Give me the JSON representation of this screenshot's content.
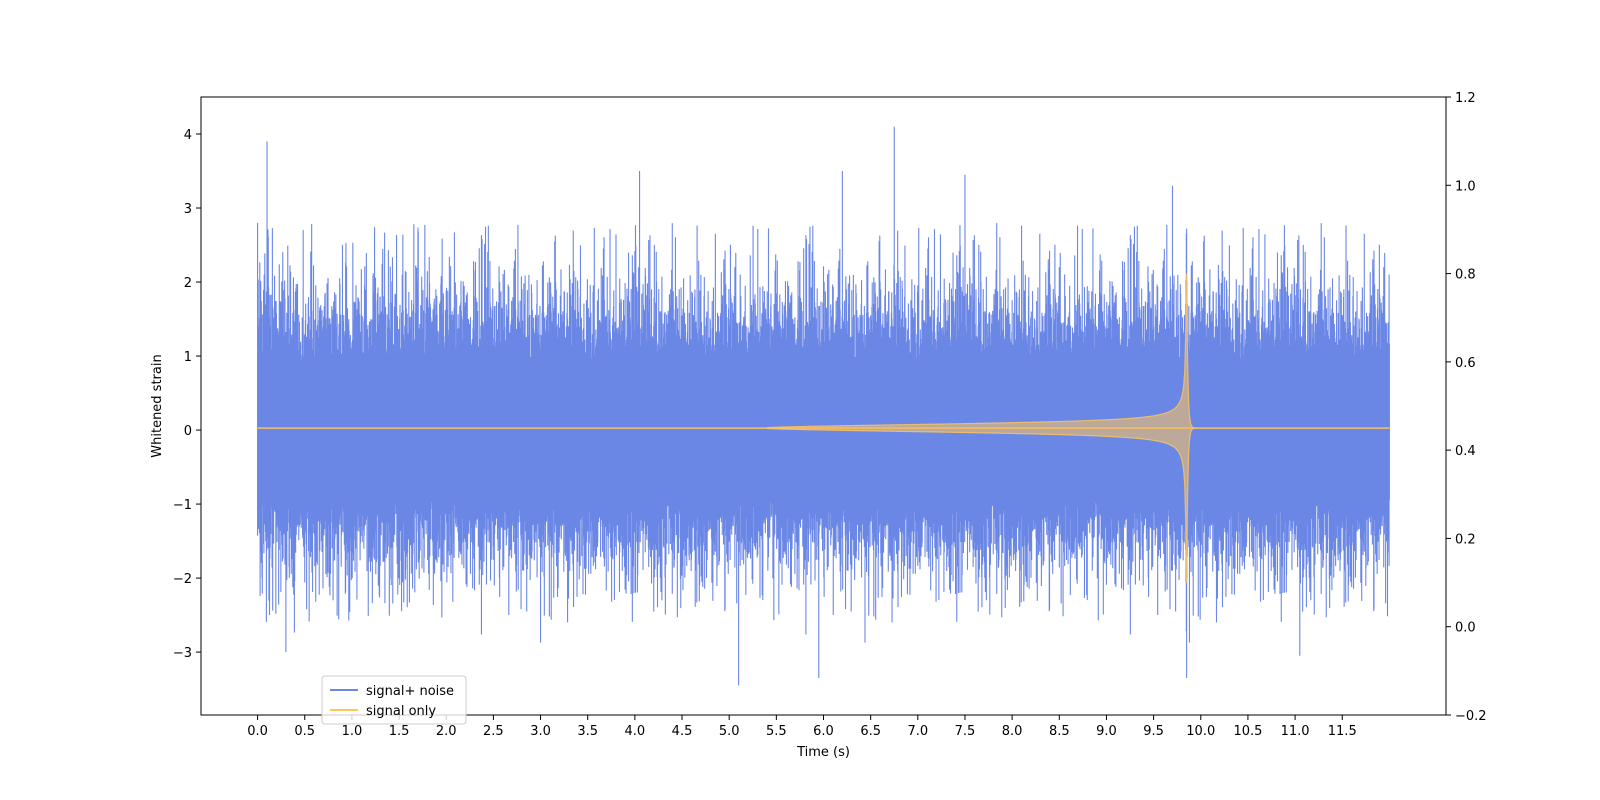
{
  "chart_data": {
    "type": "line",
    "title": "",
    "xlabel": "Time (s)",
    "ylabel": "Whitened strain",
    "xlim": [
      -0.6,
      12.6
    ],
    "ylim": [
      -3.85,
      4.5
    ],
    "y2lim": [
      -0.2,
      1.2
    ],
    "xticks": [
      0.0,
      0.5,
      1.0,
      1.5,
      2.0,
      2.5,
      3.0,
      3.5,
      4.0,
      4.5,
      5.0,
      5.5,
      6.0,
      6.5,
      7.0,
      7.5,
      8.0,
      8.5,
      9.0,
      9.5,
      10.0,
      10.5,
      11.0,
      11.5
    ],
    "xtick_labels": [
      "0.0",
      "0.5",
      "1.0",
      "1.5",
      "2.0",
      "2.5",
      "3.0",
      "3.5",
      "4.0",
      "4.5",
      "5.0",
      "5.5",
      "6.0",
      "6.5",
      "7.0",
      "7.5",
      "8.0",
      "8.5",
      "9.0",
      "9.5",
      "10.0",
      "10.5",
      "11.0",
      "11.5"
    ],
    "yticks": [
      -3,
      -2,
      -1,
      0,
      1,
      2,
      3,
      4
    ],
    "ytick_labels": [
      "−3",
      "−2",
      "−1",
      "0",
      "1",
      "2",
      "3",
      "4"
    ],
    "y2ticks": [
      -0.2,
      0.0,
      0.2,
      0.4,
      0.6,
      0.8,
      1.0,
      1.2
    ],
    "y2tick_labels": [
      "−0.2",
      "0.0",
      "0.2",
      "0.4",
      "0.6",
      "0.8",
      "1.0",
      "1.2"
    ],
    "grid": false,
    "legend_placement": "lower-left",
    "series": [
      {
        "name": "signal+ noise",
        "color": "#6b87e6",
        "axis": "left",
        "x_range": [
          0.0,
          12.0
        ],
        "envelope_typical": [
          -1.7,
          1.7
        ],
        "notable_peaks": [
          {
            "x": 0.1,
            "y": 3.9
          },
          {
            "x": 0.0,
            "y": 2.8
          },
          {
            "x": 4.05,
            "y": 3.5
          },
          {
            "x": 6.2,
            "y": 3.5
          },
          {
            "x": 6.75,
            "y": 4.1
          },
          {
            "x": 7.5,
            "y": 3.45
          },
          {
            "x": 9.7,
            "y": 3.3
          }
        ],
        "notable_troughs": [
          {
            "x": 0.3,
            "y": -3.0
          },
          {
            "x": 5.1,
            "y": -3.45
          },
          {
            "x": 5.95,
            "y": -3.35
          },
          {
            "x": 9.85,
            "y": -3.35
          },
          {
            "x": 11.05,
            "y": -3.05
          }
        ]
      },
      {
        "name": "signal only",
        "color": "#ffc55a",
        "axis": "right",
        "x_range": [
          0.0,
          12.0
        ],
        "baseline": 0.45,
        "chirp_start": 5.4,
        "merger_time": 9.85,
        "peak_amplitude": 0.35,
        "post_merger_ringdown": "rapid decay to baseline"
      }
    ]
  }
}
